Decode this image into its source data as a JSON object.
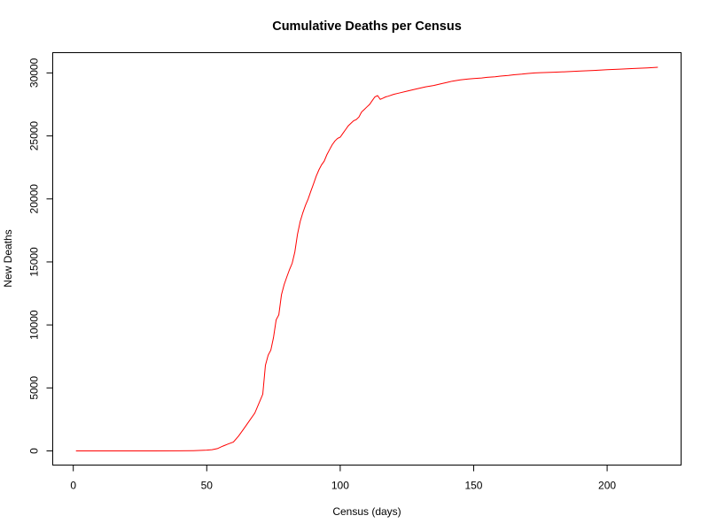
{
  "chart_data": {
    "type": "line",
    "title": "Cumulative Deaths per Census",
    "xlabel": "Census (days)",
    "ylabel": "New Deaths",
    "xlim": [
      1,
      219
    ],
    "ylim": [
      0,
      30450
    ],
    "xticks": [
      0,
      50,
      100,
      150,
      200
    ],
    "yticks": [
      0,
      5000,
      10000,
      15000,
      20000,
      25000,
      30000
    ],
    "grid": false,
    "colors": {
      "line": "#ff0000",
      "axis": "#000000",
      "background": "#ffffff"
    },
    "series": [
      {
        "name": "",
        "x": [
          1,
          10,
          20,
          30,
          40,
          45,
          48,
          50,
          52,
          54,
          56,
          58,
          60,
          62,
          64,
          66,
          68,
          70,
          71,
          72,
          73,
          74,
          75,
          76,
          77,
          78,
          79,
          80,
          81,
          82,
          83,
          84,
          85,
          86,
          87,
          88,
          89,
          90,
          91,
          92,
          93,
          94,
          95,
          96,
          97,
          98,
          99,
          100,
          101,
          102,
          103,
          104,
          105,
          106,
          107,
          108,
          109,
          110,
          111,
          112,
          113,
          114,
          115,
          116,
          117,
          118,
          120,
          122,
          125,
          128,
          130,
          132,
          135,
          138,
          140,
          142,
          145,
          148,
          150,
          153,
          155,
          158,
          160,
          163,
          165,
          168,
          170,
          173,
          175,
          180,
          185,
          190,
          195,
          200,
          205,
          210,
          215,
          219
        ],
        "y": [
          0,
          0,
          0,
          0,
          10,
          20,
          40,
          60,
          100,
          180,
          380,
          550,
          700,
          1200,
          1800,
          2400,
          3000,
          4000,
          4500,
          6800,
          7600,
          8000,
          9000,
          10400,
          10800,
          12400,
          13200,
          13800,
          14400,
          14900,
          15800,
          17200,
          18200,
          18900,
          19500,
          20000,
          20600,
          21200,
          21800,
          22300,
          22700,
          23000,
          23500,
          23900,
          24300,
          24600,
          24800,
          24900,
          25200,
          25500,
          25800,
          26000,
          26200,
          26300,
          26500,
          26900,
          27100,
          27300,
          27500,
          27800,
          28100,
          28200,
          27900,
          28000,
          28100,
          28150,
          28300,
          28400,
          28550,
          28700,
          28800,
          28900,
          29000,
          29150,
          29250,
          29350,
          29450,
          29520,
          29550,
          29600,
          29650,
          29700,
          29750,
          29800,
          29850,
          29900,
          29950,
          30000,
          30020,
          30060,
          30100,
          30150,
          30200,
          30250,
          30300,
          30350,
          30400,
          30450
        ]
      }
    ]
  }
}
